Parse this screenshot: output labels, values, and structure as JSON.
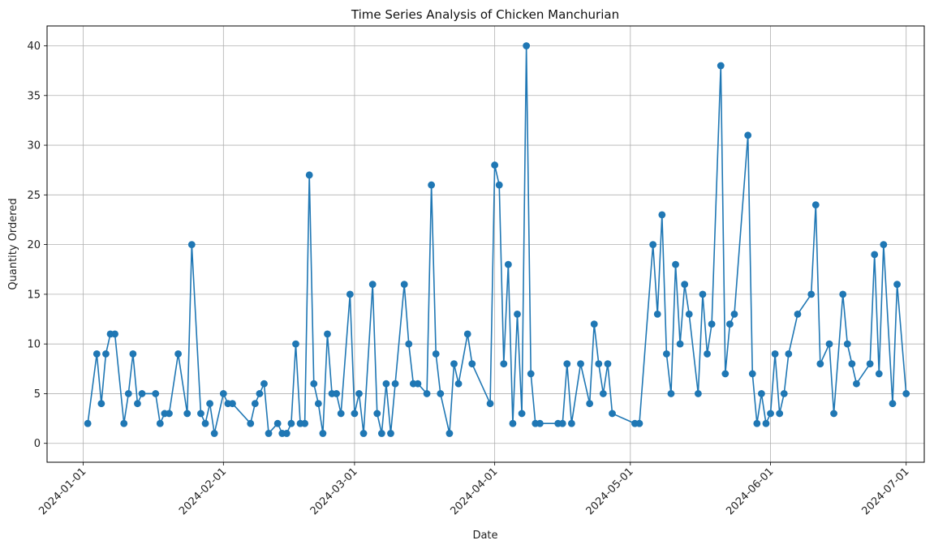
{
  "chart_data": {
    "type": "line",
    "title": "Time Series Analysis of Chicken Manchurian",
    "xlabel": "Date",
    "ylabel": "Quantity Ordered",
    "x_tick_labels": [
      "2024-01-01",
      "2024-02-01",
      "2024-03-01",
      "2024-04-01",
      "2024-05-01",
      "2024-06-01",
      "2024-07-01"
    ],
    "y_tick_labels": [
      "0",
      "5",
      "10",
      "15",
      "20",
      "25",
      "30",
      "35",
      "40"
    ],
    "xlim": [
      "2023-12-24",
      "2024-07-05"
    ],
    "ylim": [
      -1.9,
      42
    ],
    "grid": true,
    "series": [
      {
        "color": "#1f77b4",
        "marker": "circle",
        "points": [
          [
            "2024-01-02",
            2
          ],
          [
            "2024-01-04",
            9
          ],
          [
            "2024-01-05",
            4
          ],
          [
            "2024-01-06",
            9
          ],
          [
            "2024-01-07",
            11
          ],
          [
            "2024-01-08",
            11
          ],
          [
            "2024-01-10",
            2
          ],
          [
            "2024-01-11",
            5
          ],
          [
            "2024-01-12",
            9
          ],
          [
            "2024-01-13",
            4
          ],
          [
            "2024-01-14",
            5
          ],
          [
            "2024-01-17",
            5
          ],
          [
            "2024-01-18",
            2
          ],
          [
            "2024-01-19",
            3
          ],
          [
            "2024-01-20",
            3
          ],
          [
            "2024-01-22",
            9
          ],
          [
            "2024-01-24",
            3
          ],
          [
            "2024-01-25",
            20
          ],
          [
            "2024-01-27",
            3
          ],
          [
            "2024-01-28",
            2
          ],
          [
            "2024-01-29",
            4
          ],
          [
            "2024-01-30",
            1
          ],
          [
            "2024-02-01",
            5
          ],
          [
            "2024-02-02",
            4
          ],
          [
            "2024-02-03",
            4
          ],
          [
            "2024-02-07",
            2
          ],
          [
            "2024-02-08",
            4
          ],
          [
            "2024-02-09",
            5
          ],
          [
            "2024-02-10",
            6
          ],
          [
            "2024-02-11",
            1
          ],
          [
            "2024-02-13",
            2
          ],
          [
            "2024-02-14",
            1
          ],
          [
            "2024-02-15",
            1
          ],
          [
            "2024-02-16",
            2
          ],
          [
            "2024-02-17",
            10
          ],
          [
            "2024-02-18",
            2
          ],
          [
            "2024-02-19",
            2
          ],
          [
            "2024-02-20",
            27
          ],
          [
            "2024-02-21",
            6
          ],
          [
            "2024-02-22",
            4
          ],
          [
            "2024-02-23",
            1
          ],
          [
            "2024-02-24",
            11
          ],
          [
            "2024-02-25",
            5
          ],
          [
            "2024-02-26",
            5
          ],
          [
            "2024-02-27",
            3
          ],
          [
            "2024-02-29",
            15
          ],
          [
            "2024-03-01",
            3
          ],
          [
            "2024-03-02",
            5
          ],
          [
            "2024-03-03",
            1
          ],
          [
            "2024-03-05",
            16
          ],
          [
            "2024-03-06",
            3
          ],
          [
            "2024-03-07",
            1
          ],
          [
            "2024-03-08",
            6
          ],
          [
            "2024-03-09",
            1
          ],
          [
            "2024-03-10",
            6
          ],
          [
            "2024-03-12",
            16
          ],
          [
            "2024-03-13",
            10
          ],
          [
            "2024-03-14",
            6
          ],
          [
            "2024-03-15",
            6
          ],
          [
            "2024-03-17",
            5
          ],
          [
            "2024-03-18",
            26
          ],
          [
            "2024-03-19",
            9
          ],
          [
            "2024-03-20",
            5
          ],
          [
            "2024-03-22",
            1
          ],
          [
            "2024-03-23",
            8
          ],
          [
            "2024-03-24",
            6
          ],
          [
            "2024-03-26",
            11
          ],
          [
            "2024-03-27",
            8
          ],
          [
            "2024-03-31",
            4
          ],
          [
            "2024-04-01",
            28
          ],
          [
            "2024-04-02",
            26
          ],
          [
            "2024-04-03",
            8
          ],
          [
            "2024-04-04",
            18
          ],
          [
            "2024-04-05",
            2
          ],
          [
            "2024-04-06",
            13
          ],
          [
            "2024-04-07",
            3
          ],
          [
            "2024-04-08",
            40
          ],
          [
            "2024-04-09",
            7
          ],
          [
            "2024-04-10",
            2
          ],
          [
            "2024-04-11",
            2
          ],
          [
            "2024-04-15",
            2
          ],
          [
            "2024-04-16",
            2
          ],
          [
            "2024-04-17",
            8
          ],
          [
            "2024-04-18",
            2
          ],
          [
            "2024-04-20",
            8
          ],
          [
            "2024-04-22",
            4
          ],
          [
            "2024-04-23",
            12
          ],
          [
            "2024-04-24",
            8
          ],
          [
            "2024-04-25",
            5
          ],
          [
            "2024-04-26",
            8
          ],
          [
            "2024-04-27",
            3
          ],
          [
            "2024-05-02",
            2
          ],
          [
            "2024-05-03",
            2
          ],
          [
            "2024-05-06",
            20
          ],
          [
            "2024-05-07",
            13
          ],
          [
            "2024-05-08",
            23
          ],
          [
            "2024-05-09",
            9
          ],
          [
            "2024-05-10",
            5
          ],
          [
            "2024-05-11",
            18
          ],
          [
            "2024-05-12",
            10
          ],
          [
            "2024-05-13",
            16
          ],
          [
            "2024-05-14",
            13
          ],
          [
            "2024-05-16",
            5
          ],
          [
            "2024-05-17",
            15
          ],
          [
            "2024-05-18",
            9
          ],
          [
            "2024-05-19",
            12
          ],
          [
            "2024-05-21",
            38
          ],
          [
            "2024-05-22",
            7
          ],
          [
            "2024-05-23",
            12
          ],
          [
            "2024-05-24",
            13
          ],
          [
            "2024-05-27",
            31
          ],
          [
            "2024-05-28",
            7
          ],
          [
            "2024-05-29",
            2
          ],
          [
            "2024-05-30",
            5
          ],
          [
            "2024-05-31",
            2
          ],
          [
            "2024-06-01",
            3
          ],
          [
            "2024-06-02",
            9
          ],
          [
            "2024-06-03",
            3
          ],
          [
            "2024-06-04",
            5
          ],
          [
            "2024-06-05",
            9
          ],
          [
            "2024-06-07",
            13
          ],
          [
            "2024-06-10",
            15
          ],
          [
            "2024-06-11",
            24
          ],
          [
            "2024-06-12",
            8
          ],
          [
            "2024-06-14",
            10
          ],
          [
            "2024-06-15",
            3
          ],
          [
            "2024-06-17",
            15
          ],
          [
            "2024-06-18",
            10
          ],
          [
            "2024-06-19",
            8
          ],
          [
            "2024-06-20",
            6
          ],
          [
            "2024-06-23",
            8
          ],
          [
            "2024-06-24",
            19
          ],
          [
            "2024-06-25",
            7
          ],
          [
            "2024-06-26",
            20
          ],
          [
            "2024-06-28",
            4
          ],
          [
            "2024-06-29",
            16
          ],
          [
            "2024-07-01",
            5
          ]
        ]
      }
    ]
  }
}
